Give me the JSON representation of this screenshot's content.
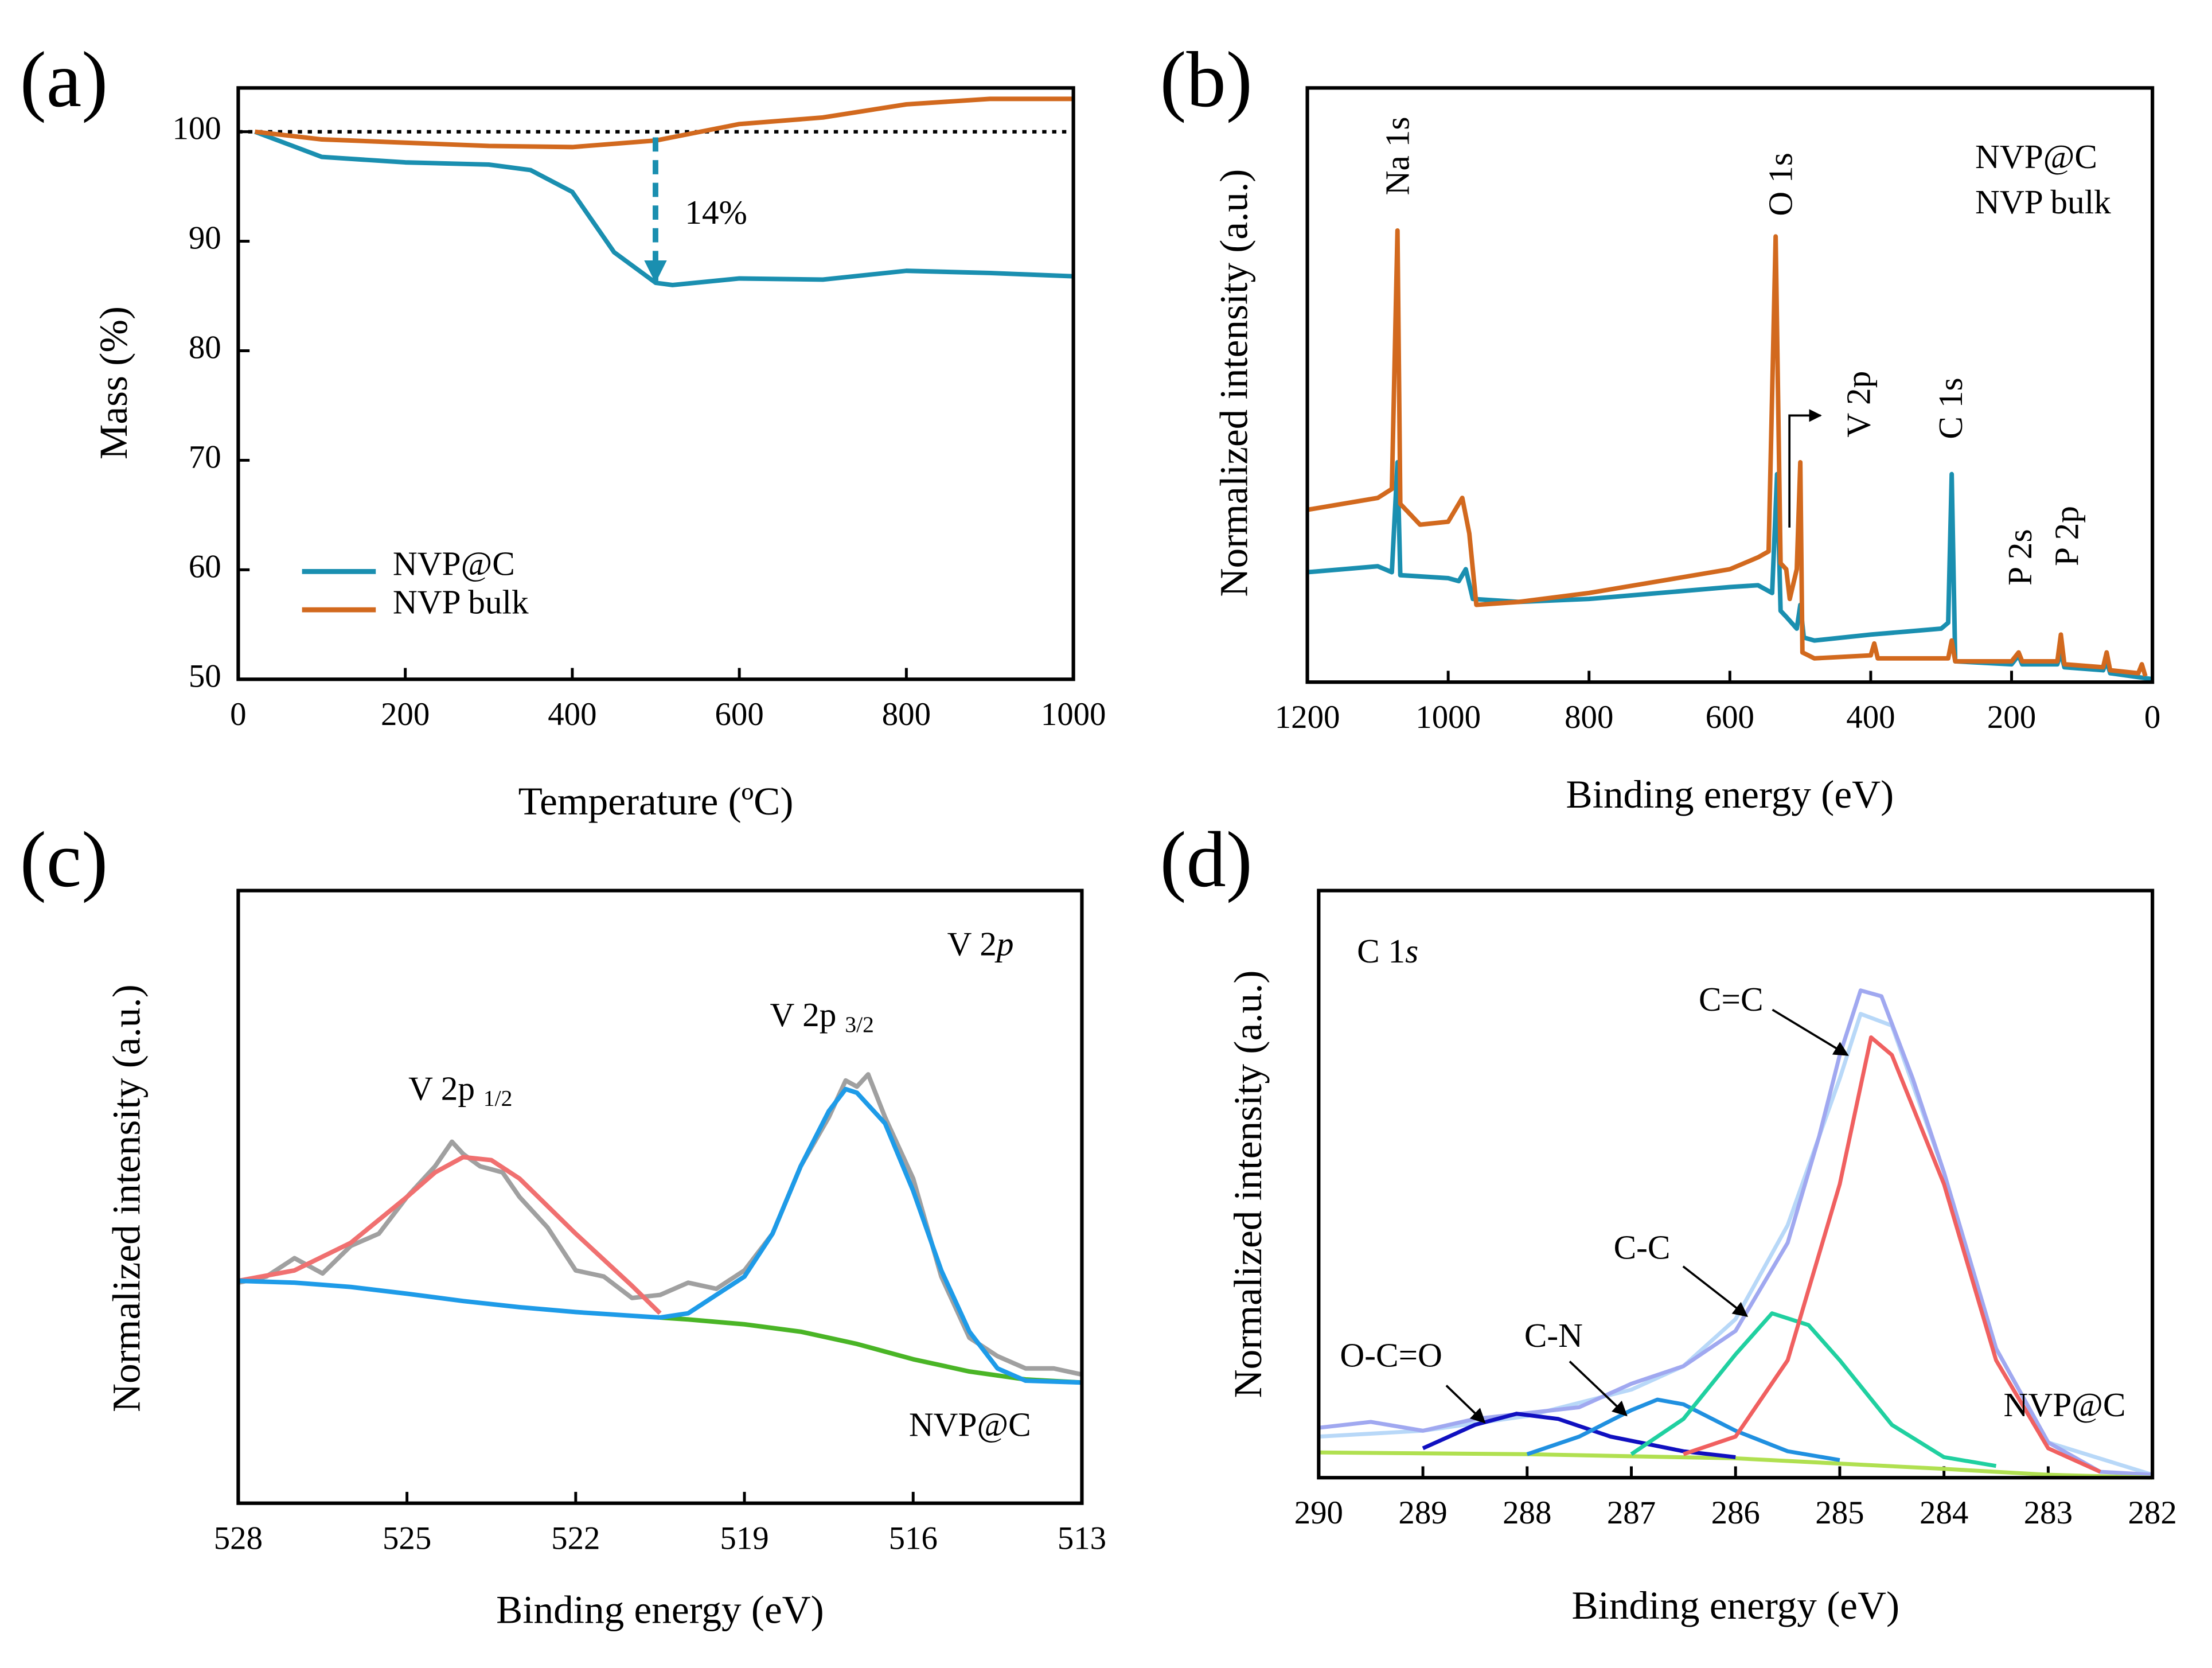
{
  "chart_data": [
    {
      "type": "line",
      "panel_label": "(a)",
      "xlabel": "Temperature (ºC)",
      "ylabel": "Mass (%)",
      "xlim": [
        0,
        1000
      ],
      "ylim": [
        50,
        104
      ],
      "xticks": [
        0,
        200,
        400,
        600,
        800,
        1000
      ],
      "yticks": [
        50,
        60,
        70,
        80,
        90,
        100
      ],
      "hline": 100,
      "legend": "lower left",
      "series": [
        {
          "name": "NVP@C",
          "color": "#1a8fb0",
          "x": [
            20,
            100,
            200,
            300,
            350,
            400,
            450,
            500,
            520,
            600,
            700,
            800,
            900,
            1000
          ],
          "values": [
            100,
            97.7,
            97.2,
            97,
            96.5,
            94.5,
            89,
            86.2,
            86,
            86.6,
            86.5,
            87.3,
            87.1,
            86.8
          ]
        },
        {
          "name": "NVP bulk",
          "color": "#d2691e",
          "x": [
            20,
            100,
            200,
            300,
            400,
            500,
            600,
            700,
            800,
            900,
            1000
          ],
          "values": [
            100,
            99.3,
            99,
            98.7,
            98.6,
            99.2,
            100.7,
            101.3,
            102.5,
            103,
            103
          ]
        }
      ],
      "annotations": [
        {
          "text": "14%"
        }
      ]
    },
    {
      "type": "line",
      "panel_label": "(b)",
      "xlabel": "Binding energy (eV)",
      "ylabel": "Normalized intensity (a.u.)",
      "xlim": [
        1200,
        0
      ],
      "ylim": [
        0,
        100
      ],
      "xticks": [
        1200,
        1000,
        800,
        600,
        400,
        200,
        0
      ],
      "legend": "upper right",
      "series": [
        {
          "name": "NVP@C",
          "color": "#1a8fb0",
          "x": [
            1200,
            1150,
            1100,
            1080,
            1072,
            1068,
            1000,
            985,
            975,
            965,
            900,
            800,
            700,
            600,
            560,
            540,
            533,
            528,
            520,
            505,
            500,
            495,
            480,
            400,
            350,
            300,
            290,
            285,
            280,
            200,
            190,
            185,
            135,
            130,
            125,
            70,
            65,
            60,
            0
          ],
          "values": [
            18.5,
            19,
            19.5,
            18.5,
            37,
            18,
            17.5,
            17,
            19,
            14,
            13.5,
            14,
            15,
            16,
            16.3,
            15,
            35,
            12,
            11,
            9,
            13,
            7.5,
            7,
            8,
            8.5,
            9,
            10,
            35,
            3.5,
            3,
            4.5,
            3,
            3,
            5,
            2.5,
            2,
            3.5,
            1.5,
            0.5
          ]
        },
        {
          "name": "NVP bulk",
          "color": "#d2691e",
          "x": [
            1200,
            1150,
            1100,
            1080,
            1072,
            1068,
            1040,
            1000,
            980,
            970,
            960,
            900,
            800,
            700,
            600,
            560,
            545,
            535,
            528,
            520,
            515,
            505,
            500,
            497,
            480,
            400,
            395,
            390,
            300,
            290,
            285,
            280,
            200,
            190,
            185,
            135,
            130,
            125,
            70,
            65,
            60,
            20,
            15,
            10
          ],
          "values": [
            29,
            30,
            31,
            32.5,
            76,
            30,
            26.5,
            27,
            31,
            25,
            13,
            13.5,
            15,
            17,
            19,
            21,
            22,
            75,
            20,
            19,
            14,
            19,
            37,
            5,
            4,
            4.5,
            6.5,
            4,
            4,
            4,
            7,
            3.5,
            3.5,
            5,
            3.5,
            3.5,
            8,
            3,
            2.5,
            5,
            2,
            1.5,
            3,
            1
          ]
        }
      ],
      "annotations": [
        {
          "text": "Na 1s"
        },
        {
          "text": "O 1s"
        },
        {
          "text": "V 2p"
        },
        {
          "text": "C 1s"
        },
        {
          "text": "P 2s"
        },
        {
          "text": "P 2p"
        }
      ]
    },
    {
      "type": "line",
      "panel_label": "(c)",
      "xlabel": "Binding energy (eV)",
      "ylabel": "Normalized intensity (a.u.)",
      "xlim": [
        528,
        513
      ],
      "ylim": [
        0,
        100
      ],
      "xticks": [
        528,
        525,
        522,
        519,
        516,
        513
      ],
      "series": [
        {
          "color": "#a0a0a0",
          "x": [
            528,
            527.5,
            527,
            526.5,
            526,
            525.5,
            525,
            524.5,
            524.2,
            524,
            523.7,
            523.3,
            523,
            522.5,
            522,
            521.5,
            521,
            520.5,
            520,
            519.5,
            519,
            518.5,
            518,
            517.5,
            517.2,
            517,
            516.8,
            516.5,
            516,
            515.5,
            515,
            514.5,
            514,
            513.5,
            513
          ],
          "values": [
            36,
            37,
            40,
            37.5,
            42,
            44,
            50,
            55,
            59,
            57,
            55,
            54,
            50,
            45,
            38,
            37,
            33.5,
            34,
            36,
            35,
            38,
            44,
            55,
            63,
            69,
            68,
            70,
            63,
            53,
            37,
            27,
            24,
            22,
            22,
            21
          ]
        },
        {
          "color": "#f07070",
          "x": [
            528,
            527,
            526,
            525,
            524.5,
            524,
            523.5,
            523,
            522,
            521,
            520.5
          ],
          "values": [
            36.3,
            38,
            42.5,
            50,
            54,
            56.5,
            56,
            53,
            44,
            35.5,
            31
          ]
        },
        {
          "color": "#1e9be8",
          "x": [
            528,
            527,
            526,
            525,
            524,
            523,
            522,
            521,
            520.5
          ],
          "values": [
            36.3,
            36,
            35.3,
            34.2,
            33,
            32,
            31.2,
            30.6,
            30.3
          ]
        },
        {
          "color": "#4ab526",
          "x": [
            520.5,
            520,
            519,
            518,
            517,
            516,
            515,
            514,
            513
          ],
          "values": [
            30.3,
            30,
            29.2,
            28,
            26,
            23.5,
            21.5,
            20.2,
            19.7
          ]
        },
        {
          "color": "#1e9be8",
          "x": [
            520.5,
            520,
            519,
            518.5,
            518,
            517.5,
            517.2,
            517,
            516.5,
            516,
            515.5,
            515,
            514.5,
            514,
            513
          ],
          "values": [
            30.3,
            31,
            37,
            44,
            55,
            64,
            67.6,
            67,
            62,
            51,
            38,
            28,
            22,
            20,
            19.7
          ]
        }
      ],
      "annotations": [
        {
          "text": "V 2",
          "italic": "p"
        },
        {
          "text": "V 2p",
          "sub": "3/2"
        },
        {
          "text": "V 2p",
          "sub": "1/2"
        },
        {
          "text": "NVP@C"
        }
      ]
    },
    {
      "type": "line",
      "panel_label": "(d)",
      "xlabel": "Binding energy (eV)",
      "ylabel": "Normalized intensity (a.u.)",
      "xlim": [
        290,
        282
      ],
      "ylim": [
        0,
        100
      ],
      "xticks": [
        290,
        289,
        288,
        287,
        286,
        285,
        284,
        283,
        282
      ],
      "series": [
        {
          "color": "#b8d8f8",
          "x": [
            290,
            289,
            288,
            287,
            286.5,
            286,
            285.5,
            285,
            284.8,
            284.5,
            284,
            283.5,
            283,
            282
          ],
          "values": [
            7,
            8,
            10.5,
            15,
            19,
            27,
            43,
            68,
            79,
            77,
            52,
            22,
            6,
            0.5
          ]
        },
        {
          "color": "#a0a8f0",
          "x": [
            290,
            289.5,
            289,
            288.5,
            288,
            287.5,
            287,
            286.5,
            286,
            285.5,
            285.2,
            285,
            284.8,
            284.6,
            284.3,
            284,
            283.5,
            283,
            282.5,
            282
          ],
          "values": [
            8.5,
            9.5,
            8,
            10,
            11,
            12,
            16,
            19,
            25,
            40,
            58,
            72,
            83,
            82,
            68,
            52,
            22,
            6,
            1,
            0.5
          ]
        },
        {
          "color": "#b0e050",
          "x": [
            290,
            288,
            286,
            284,
            283,
            282
          ],
          "values": [
            4.3,
            4,
            3.3,
            1.5,
            0.5,
            0
          ]
        },
        {
          "color": "#1010c0",
          "x": [
            289,
            288.5,
            288.1,
            287.7,
            287.2,
            286.5,
            286
          ],
          "values": [
            5,
            9,
            10.9,
            10,
            7,
            4.5,
            3.5
          ]
        },
        {
          "color": "#2090e0",
          "x": [
            288,
            287.5,
            287,
            286.75,
            286.5,
            286,
            285.5,
            285
          ],
          "values": [
            4,
            7,
            11.5,
            13.3,
            12.5,
            8,
            4.5,
            3
          ]
        },
        {
          "color": "#20d0a0",
          "x": [
            287,
            286.5,
            286,
            285.65,
            285.3,
            285,
            284.5,
            284,
            283.5
          ],
          "values": [
            4,
            10,
            21,
            28,
            26,
            20,
            9,
            3.5,
            2
          ]
        },
        {
          "color": "#f06060",
          "x": [
            286.5,
            286,
            285.5,
            285,
            284.7,
            284.5,
            284,
            283.5,
            283,
            282.5
          ],
          "values": [
            4,
            7,
            20,
            50,
            75,
            72,
            50,
            20,
            5,
            1
          ]
        }
      ],
      "annotations": [
        {
          "text": "C 1",
          "italic": "s"
        },
        {
          "text": "C=C"
        },
        {
          "text": "C-C"
        },
        {
          "text": "C-N"
        },
        {
          "text": "O-C=O"
        },
        {
          "text": "NVP@C"
        }
      ]
    }
  ]
}
